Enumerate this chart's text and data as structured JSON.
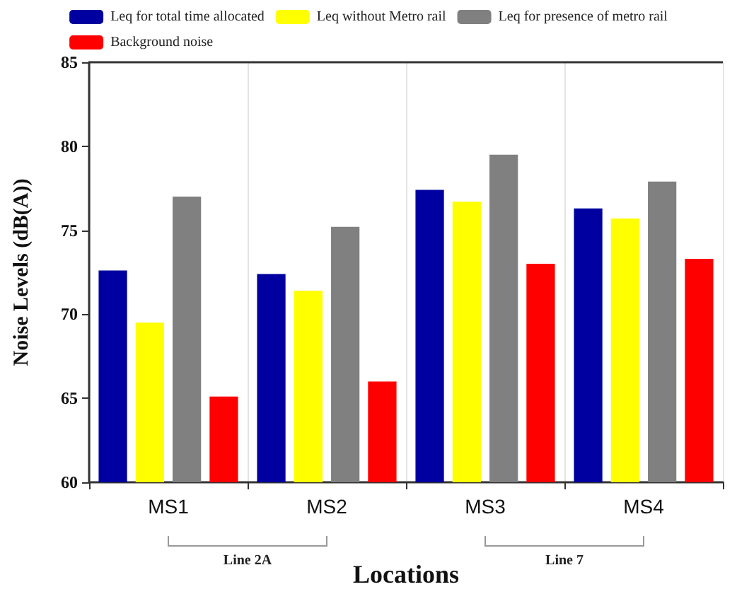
{
  "chart_data": {
    "type": "bar",
    "xlabel": "Locations",
    "ylabel": "Noise Levels (dB(A))",
    "categories": [
      "MS1",
      "MS2",
      "MS3",
      "MS4"
    ],
    "series": [
      {
        "name": "Leq for total time allocated",
        "color": "#0000a0",
        "values": [
          72.6,
          72.4,
          77.4,
          76.3
        ]
      },
      {
        "name": "Leq without Metro rail",
        "color": "#ffff00",
        "values": [
          69.5,
          71.4,
          76.7,
          75.7
        ]
      },
      {
        "name": "Leq for presence of metro rail",
        "color": "#808080",
        "values": [
          77.0,
          75.2,
          79.5,
          77.9
        ]
      },
      {
        "name": "Background noise",
        "color": "#ff0000",
        "values": [
          65.1,
          66.0,
          73.0,
          73.3
        ]
      }
    ],
    "ylim": [
      60,
      85
    ],
    "yticks": [
      60,
      65,
      70,
      75,
      80,
      85
    ],
    "grid": "x",
    "legend": "top",
    "annotations": [
      "Line 2A",
      "Line 7"
    ]
  }
}
